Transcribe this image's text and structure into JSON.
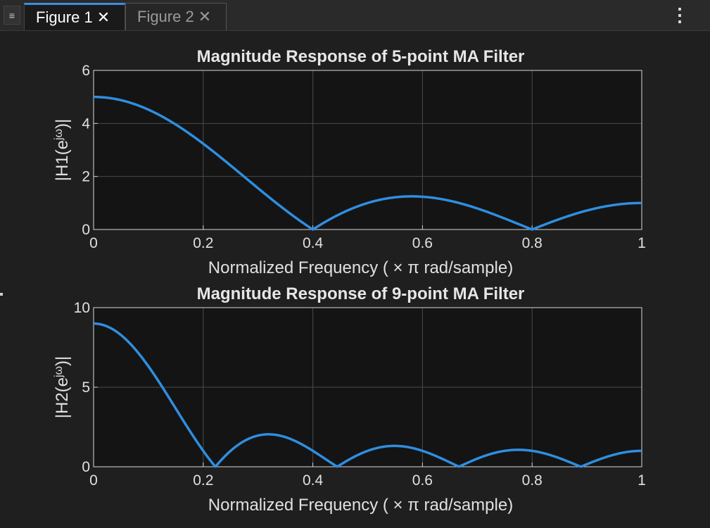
{
  "tabs": [
    {
      "label": "Figure 1",
      "close": "✕",
      "active": true
    },
    {
      "label": "Figure 2",
      "close": "✕",
      "active": false
    }
  ],
  "menu_icon": "≡",
  "kebab_icon": "⋮",
  "colors": {
    "line": "#2f8ee0",
    "axes_bg": "#141414",
    "grid": "#4a4a4a"
  },
  "chart_data": [
    {
      "type": "line",
      "title": "Magnitude Response of 5-point MA Filter",
      "xlabel": "Normalized  Frequency  ( × π  rad/sample)",
      "ylabel": "|H1(e^jω)|",
      "ylabel_base": "|H1(e",
      "ylabel_sup": "jω",
      "ylabel_end": ")|",
      "xlim": [
        0,
        1
      ],
      "ylim": [
        0,
        6
      ],
      "xticks": [
        "0",
        "0.2",
        "0.4",
        "0.6",
        "0.8",
        "1"
      ],
      "yticks": [
        "0",
        "2",
        "4",
        "6"
      ],
      "grid": true,
      "N": 5,
      "series": [
        {
          "x": [
            0,
            0.05,
            0.1,
            0.15,
            0.2,
            0.25,
            0.3,
            0.35,
            0.4,
            0.45,
            0.5,
            0.55,
            0.58,
            0.6,
            0.65,
            0.7,
            0.75,
            0.8,
            0.85,
            0.9,
            0.95,
            1.0
          ],
          "values": [
            5.0,
            4.88,
            4.24,
            3.47,
            2.62,
            1.8,
            1.0,
            0.5,
            0.0,
            0.65,
            1.0,
            1.22,
            1.25,
            1.24,
            1.1,
            0.79,
            0.41,
            0.0,
            0.43,
            0.77,
            0.95,
            1.0
          ]
        }
      ]
    },
    {
      "type": "line",
      "title": "Magnitude Response of 9-point MA Filter",
      "xlabel": "Normalized  Frequency  ( × π  rad/sample)",
      "ylabel": "|H2(e^jω)|",
      "ylabel_base": "|H2(e",
      "ylabel_sup": "jω",
      "ylabel_end": ")|",
      "xlim": [
        0,
        1
      ],
      "ylim": [
        0,
        10
      ],
      "xticks": [
        "0",
        "0.2",
        "0.4",
        "0.6",
        "0.8",
        "1"
      ],
      "yticks": [
        "0",
        "5",
        "10"
      ],
      "grid": true,
      "N": 9,
      "series": [
        {
          "x": [
            0,
            0.05,
            0.1,
            0.15,
            0.222,
            0.27,
            0.32,
            0.38,
            0.444,
            0.5,
            0.55,
            0.6,
            0.667,
            0.72,
            0.77,
            0.83,
            0.889,
            0.94,
            1.0
          ],
          "values": [
            9.0,
            8.5,
            7.0,
            4.6,
            0.0,
            1.55,
            2.0,
            1.55,
            0.0,
            1.0,
            1.3,
            1.05,
            0.0,
            0.85,
            1.06,
            0.8,
            0.0,
            0.65,
            1.0
          ]
        }
      ]
    }
  ]
}
